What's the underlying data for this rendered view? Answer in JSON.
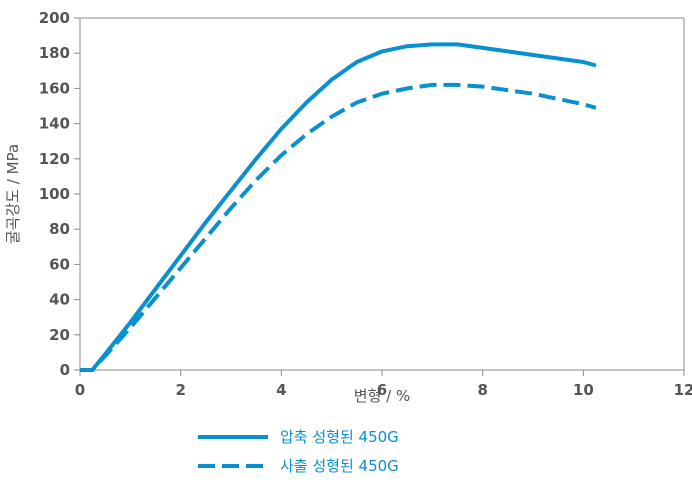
{
  "chart_data": {
    "type": "line",
    "xlabel": "변형 / %",
    "ylabel": "굴곡강도 / MPa",
    "xlim": [
      0,
      12
    ],
    "ylim": [
      0,
      200
    ],
    "x_ticks": [
      "0",
      "2",
      "4",
      "6",
      "8",
      "10",
      "12"
    ],
    "y_ticks": [
      "0",
      "20",
      "40",
      "60",
      "80",
      "100",
      "120",
      "140",
      "160",
      "180",
      "200"
    ],
    "grid": false,
    "legend_position": "bottom",
    "series": [
      {
        "name": "압축 성형된 450G",
        "style": "solid",
        "color": "#0a8fcf",
        "points": [
          [
            0,
            0
          ],
          [
            0.25,
            0
          ],
          [
            0.3,
            2
          ],
          [
            0.5,
            9
          ],
          [
            1,
            27
          ],
          [
            1.5,
            46
          ],
          [
            2,
            65
          ],
          [
            2.5,
            84
          ],
          [
            3,
            102
          ],
          [
            3.5,
            120
          ],
          [
            4,
            137
          ],
          [
            4.5,
            152
          ],
          [
            5,
            165
          ],
          [
            5.5,
            175
          ],
          [
            6,
            181
          ],
          [
            6.5,
            184
          ],
          [
            7,
            185
          ],
          [
            7.5,
            185
          ],
          [
            8,
            183
          ],
          [
            8.5,
            181
          ],
          [
            9,
            179
          ],
          [
            9.5,
            177
          ],
          [
            10,
            175
          ],
          [
            10.25,
            173
          ]
        ]
      },
      {
        "name": "사출 성형된 450G",
        "style": "dashed",
        "color": "#0a8fcf",
        "points": [
          [
            0,
            0
          ],
          [
            0.25,
            0
          ],
          [
            0.3,
            2
          ],
          [
            0.5,
            8
          ],
          [
            1,
            24
          ],
          [
            1.5,
            41
          ],
          [
            2,
            58
          ],
          [
            2.5,
            75
          ],
          [
            3,
            92
          ],
          [
            3.5,
            108
          ],
          [
            4,
            122
          ],
          [
            4.5,
            134
          ],
          [
            5,
            144
          ],
          [
            5.5,
            152
          ],
          [
            6,
            157
          ],
          [
            6.5,
            160
          ],
          [
            7,
            162
          ],
          [
            7.5,
            162
          ],
          [
            8,
            161
          ],
          [
            8.5,
            159
          ],
          [
            9,
            157
          ],
          [
            9.5,
            154
          ],
          [
            10,
            151
          ],
          [
            10.25,
            149
          ]
        ]
      }
    ]
  }
}
